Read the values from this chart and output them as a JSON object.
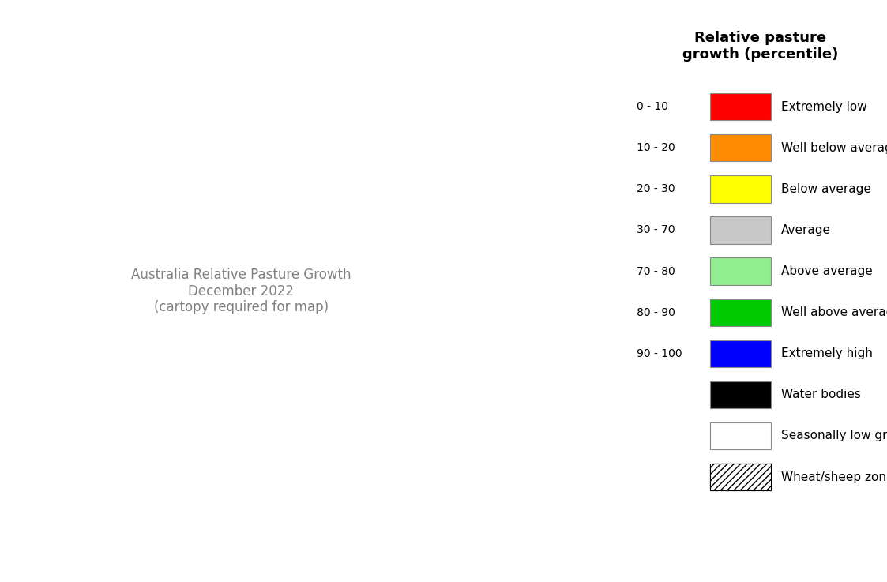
{
  "title": "Relative pasture\ngrowth (percentile)",
  "legend_items": [
    {
      "range": "0 - 10",
      "color": "#FF0000",
      "label": "Extremely low",
      "hatch": null,
      "edgecolor": "#888888"
    },
    {
      "range": "10 - 20",
      "color": "#FF8C00",
      "label": "Well below average",
      "hatch": null,
      "edgecolor": "#888888"
    },
    {
      "range": "20 - 30",
      "color": "#FFFF00",
      "label": "Below average",
      "hatch": null,
      "edgecolor": "#888888"
    },
    {
      "range": "30 - 70",
      "color": "#C8C8C8",
      "label": "Average",
      "hatch": null,
      "edgecolor": "#888888"
    },
    {
      "range": "70 - 80",
      "color": "#90EE90",
      "label": "Above average",
      "hatch": null,
      "edgecolor": "#888888"
    },
    {
      "range": "80 - 90",
      "color": "#00CC00",
      "label": "Well above average",
      "hatch": null,
      "edgecolor": "#888888"
    },
    {
      "range": "90 - 100",
      "color": "#0000FF",
      "label": "Extremely high",
      "hatch": null,
      "edgecolor": "#888888"
    },
    {
      "range": "",
      "color": "#000000",
      "label": "Water bodies",
      "hatch": null,
      "edgecolor": "#888888"
    },
    {
      "range": "",
      "color": "#FFFFFF",
      "label": "Seasonally low growth",
      "hatch": null,
      "edgecolor": "#888888"
    },
    {
      "range": "",
      "color": "#FFFFFF",
      "label": "Wheat/sheep zone",
      "hatch": "////",
      "edgecolor": "#000000"
    }
  ],
  "legend_title_fontsize": 13,
  "legend_label_fontsize": 11,
  "legend_range_fontsize": 10,
  "background_color": "#FFFFFF",
  "fig_width": 11.23,
  "fig_height": 7.37,
  "map_extent": [
    112,
    155,
    -44,
    -10
  ]
}
